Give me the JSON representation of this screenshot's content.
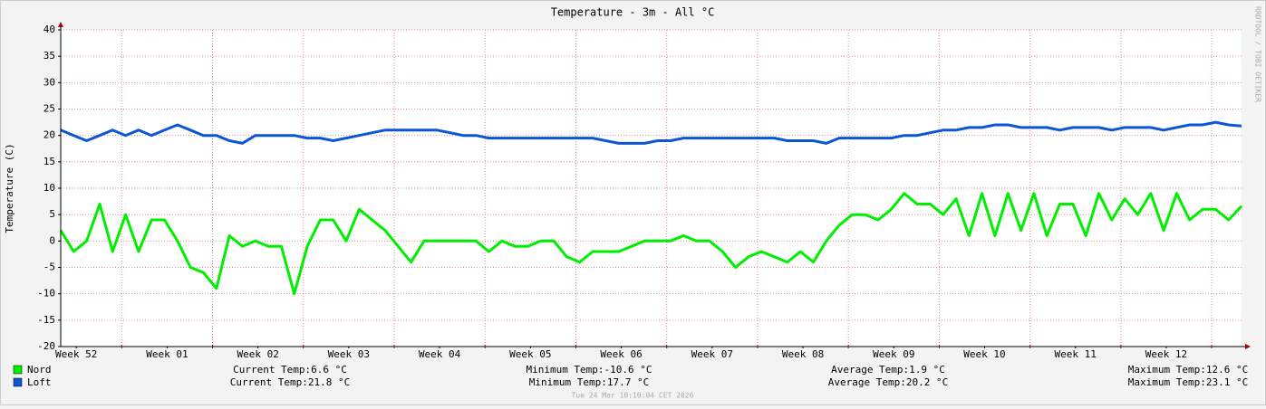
{
  "chart_data": {
    "type": "line",
    "title": "Temperature - 3m - All °C",
    "ylabel": "Temperature (C)",
    "watermark": "RRDTOOL / TOBI OETIKER",
    "timestamp": "Tue 24 Mar 10:10:04 CET 2026",
    "xlim": [
      0,
      91
    ],
    "xticks": [
      {
        "value": 1.2,
        "label": "Week 52"
      },
      {
        "value": 8.2,
        "label": "Week 01"
      },
      {
        "value": 15.2,
        "label": "Week 02"
      },
      {
        "value": 22.2,
        "label": "Week 03"
      },
      {
        "value": 29.2,
        "label": "Week 04"
      },
      {
        "value": 36.2,
        "label": "Week 05"
      },
      {
        "value": 43.2,
        "label": "Week 06"
      },
      {
        "value": 50.2,
        "label": "Week 07"
      },
      {
        "value": 57.2,
        "label": "Week 08"
      },
      {
        "value": 64.2,
        "label": "Week 09"
      },
      {
        "value": 71.2,
        "label": "Week 10"
      },
      {
        "value": 78.2,
        "label": "Week 11"
      },
      {
        "value": 85.2,
        "label": "Week 12"
      }
    ],
    "xgrid": [
      4.7,
      11.7,
      18.7,
      25.7,
      32.7,
      39.7,
      46.7,
      53.7,
      60.7,
      67.7,
      74.7,
      81.7,
      88.7
    ],
    "ylim": [
      -20,
      40
    ],
    "yticks": [
      -20,
      -15,
      -10,
      -5,
      0,
      5,
      10,
      15,
      20,
      25,
      30,
      35,
      40
    ],
    "grid": true,
    "x": [
      0,
      1,
      2,
      3,
      4,
      5,
      6,
      7,
      8,
      9,
      10,
      11,
      12,
      13,
      14,
      15,
      16,
      17,
      18,
      19,
      20,
      21,
      22,
      23,
      24,
      25,
      26,
      27,
      28,
      29,
      30,
      31,
      32,
      33,
      34,
      35,
      36,
      37,
      38,
      39,
      40,
      41,
      42,
      43,
      44,
      45,
      46,
      47,
      48,
      49,
      50,
      51,
      52,
      53,
      54,
      55,
      56,
      57,
      58,
      59,
      60,
      61,
      62,
      63,
      64,
      65,
      66,
      67,
      68,
      69,
      70,
      71,
      72,
      73,
      74,
      75,
      76,
      77,
      78,
      79,
      80,
      81,
      82,
      83,
      84,
      85,
      86,
      87,
      88,
      89,
      90,
      91
    ],
    "series": [
      {
        "name": "Nord",
        "color": "#00ee00",
        "values": [
          2,
          -2,
          0,
          7,
          -2,
          5,
          -2,
          4,
          4,
          0,
          -5,
          -6,
          -9,
          1,
          -1,
          0,
          -1,
          -1,
          -10,
          -1,
          4,
          4,
          0,
          6,
          4,
          2,
          -1,
          -4,
          0,
          0,
          0,
          0,
          0,
          -2,
          0,
          -1,
          -1,
          0,
          0,
          -3,
          -4,
          -2,
          -2,
          -2,
          -1,
          0,
          0,
          0,
          1,
          0,
          0,
          -2,
          -5,
          -3,
          -2,
          -3,
          -4,
          -2,
          -4,
          0,
          3,
          5,
          5,
          4,
          6,
          9,
          7,
          7,
          5,
          8,
          1,
          9,
          1,
          9,
          2,
          9,
          1,
          7,
          7,
          1,
          9,
          4,
          8,
          5,
          9,
          2,
          9,
          4,
          6,
          6,
          4,
          6.6
        ],
        "stats": [
          "Current Temp:6.6 °C",
          "Minimum Temp:-10.6 °C",
          "Average Temp:1.9 °C",
          "Maximum Temp:12.6 °C"
        ]
      },
      {
        "name": "Loft",
        "color": "#0b56d4",
        "values": [
          21,
          20,
          19,
          20,
          21,
          20,
          21,
          20,
          21,
          22,
          21,
          20,
          20,
          19,
          18.5,
          20,
          20,
          20,
          20,
          19.5,
          19.5,
          19,
          19.5,
          20,
          20.5,
          21,
          21,
          21,
          21,
          21,
          20.5,
          20,
          20,
          19.5,
          19.5,
          19.5,
          19.5,
          19.5,
          19.5,
          19.5,
          19.5,
          19.5,
          19,
          18.5,
          18.5,
          18.5,
          19,
          19,
          19.5,
          19.5,
          19.5,
          19.5,
          19.5,
          19.5,
          19.5,
          19.5,
          19,
          19,
          19,
          18.5,
          19.5,
          19.5,
          19.5,
          19.5,
          19.5,
          20,
          20,
          20.5,
          21,
          21,
          21.5,
          21.5,
          22,
          22,
          21.5,
          21.5,
          21.5,
          21,
          21.5,
          21.5,
          21.5,
          21,
          21.5,
          21.5,
          21.5,
          21,
          21.5,
          22,
          22,
          22.5,
          22,
          21.8
        ],
        "stats": [
          "Current Temp:21.8 °C",
          "Minimum Temp:17.7 °C",
          "Average Temp:20.2 °C",
          "Maximum Temp:23.1 °C"
        ]
      }
    ]
  }
}
